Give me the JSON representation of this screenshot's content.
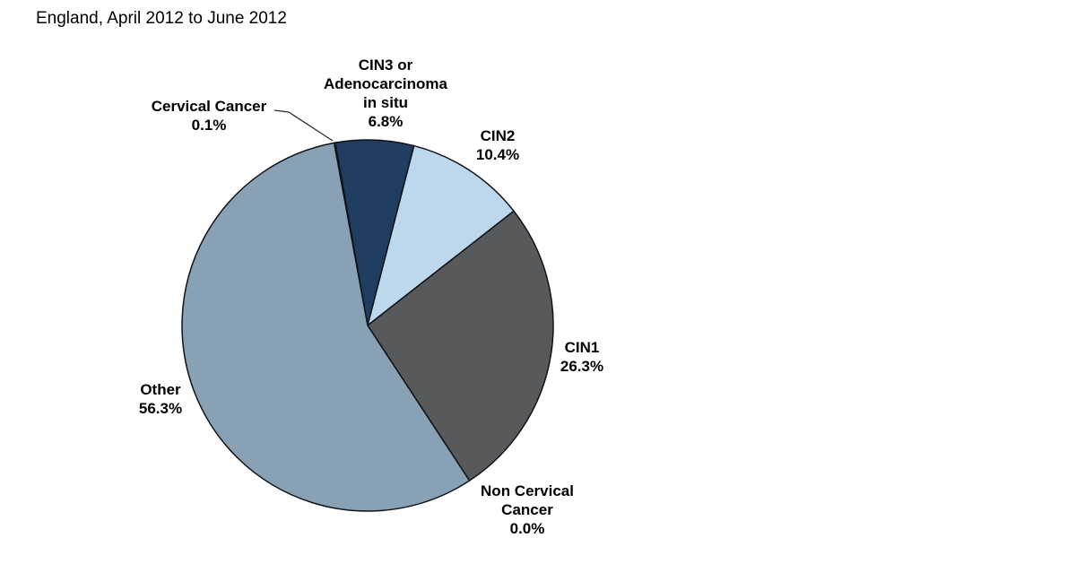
{
  "title": "England, April 2012 to June 2012",
  "chart_data": {
    "type": "pie",
    "title": "England, April 2012 to June 2012",
    "direction": "clockwise",
    "start_angle_deg": -10.4,
    "legend_position": "none",
    "labels_outside": true,
    "stroke_color": "#101418",
    "background_color": "#ffffff",
    "slices": [
      {
        "id": "cervical-cancer",
        "label": "Cervical Cancer",
        "value_pct": 0.1,
        "display": "Cervical Cancer 0.1%",
        "color": "#17375e"
      },
      {
        "id": "cin3-adenocarcinoma-in-situ",
        "label": "CIN3 or Adenocarcinoma in situ",
        "value_pct": 6.8,
        "display": "CIN3 or Adenocarcinoma in situ 6.8%",
        "color": "#1e3d61"
      },
      {
        "id": "cin2",
        "label": "CIN2",
        "value_pct": 10.4,
        "display": "CIN2 10.4%",
        "color": "#bdd7ec"
      },
      {
        "id": "cin1",
        "label": "CIN1",
        "value_pct": 26.3,
        "display": "CIN1 26.3%",
        "color": "#58595b"
      },
      {
        "id": "non-cervical-cancer",
        "label": "Non Cervical Cancer",
        "value_pct": 0.0,
        "display": "Non Cervical Cancer 0.0%",
        "color": "#7f7f7f"
      },
      {
        "id": "other",
        "label": "Other",
        "value_pct": 56.3,
        "display": "Other 56.3%",
        "color": "#88a1b4"
      }
    ]
  },
  "labels": {
    "cervical": {
      "lines": [
        "Cervical Cancer",
        "0.1%"
      ]
    },
    "cin3": {
      "lines": [
        "CIN3 or",
        "Adenocarcinoma",
        "in situ",
        "6.8%"
      ]
    },
    "cin2": {
      "lines": [
        "CIN2",
        "10.4%"
      ]
    },
    "cin1": {
      "lines": [
        "CIN1",
        "26.3%"
      ]
    },
    "other": {
      "lines": [
        "Other",
        "56.3%"
      ]
    },
    "noncervical": {
      "lines": [
        "Non Cervical",
        "Cancer",
        "0.0%"
      ]
    }
  }
}
